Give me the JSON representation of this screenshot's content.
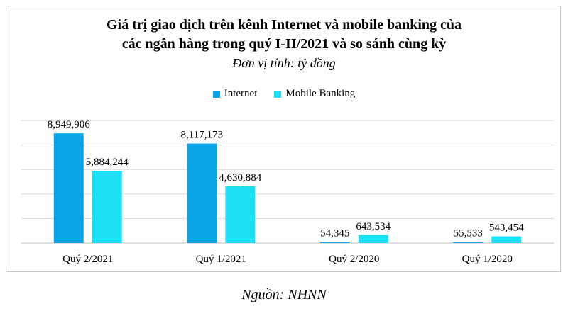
{
  "chart_data": {
    "type": "bar",
    "title_line1": "Giá trị giao dịch trên kênh Internet và mobile banking của",
    "title_line2": "các ngân hàng trong quý I-II/2021 và so sánh cùng kỳ",
    "subtitle": "Đơn vị tính: tỷ đồng",
    "categories": [
      "Quý 2/2021",
      "Quý 1/2021",
      "Quý 2/2020",
      "Quý 1/2020"
    ],
    "series": [
      {
        "name": "Internet",
        "color": "#0aa3e6",
        "values": [
          8949906,
          8117173,
          54345,
          55533
        ],
        "labels": [
          "8,949,906",
          "8,117,173",
          "54,345",
          "55,533"
        ]
      },
      {
        "name": "Mobile Banking",
        "color": "#1ee0f5",
        "values": [
          5884244,
          4630884,
          643534,
          543454
        ],
        "labels": [
          "5,884,244",
          "4,630,884",
          "643,534",
          "543,454"
        ]
      }
    ],
    "ylim": [
      0,
      10000000
    ],
    "grid": true,
    "legend_position": "top-center"
  },
  "source": "Nguồn: NHNN"
}
